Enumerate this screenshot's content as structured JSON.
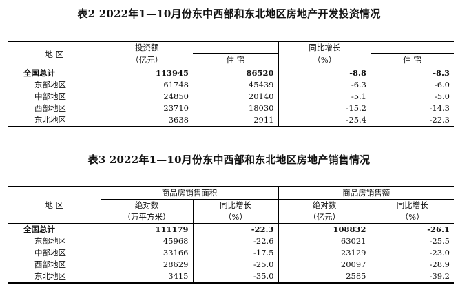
{
  "table2": {
    "title": "表2   2022年1—10月份东中西部和东北地区房地产开发投资情况",
    "header": {
      "region": "地  区",
      "investment": "投资额",
      "investment_unit": "（亿元）",
      "residential": "住    宅",
      "yoy": "同比增长",
      "yoy_unit": "（%）",
      "yoy_residential": "住    宅"
    },
    "rows": [
      {
        "region": "全国总计",
        "investment": "113945",
        "residential": "86520",
        "yoy": "-8.8",
        "yoy_residential": "-8.3"
      },
      {
        "region": "东部地区",
        "investment": "61748",
        "residential": "45439",
        "yoy": "-6.3",
        "yoy_residential": "-6.0"
      },
      {
        "region": "中部地区",
        "investment": "24850",
        "residential": "20140",
        "yoy": "-5.1",
        "yoy_residential": "-5.0"
      },
      {
        "region": "西部地区",
        "investment": "23710",
        "residential": "18030",
        "yoy": "-15.2",
        "yoy_residential": "-14.3"
      },
      {
        "region": "东北地区",
        "investment": "3638",
        "residential": "2911",
        "yoy": "-25.4",
        "yoy_residential": "-22.3"
      }
    ]
  },
  "table3": {
    "title": "表3   2022年1—10月份东中西部和东北地区房地产销售情况",
    "header": {
      "region": "地  区",
      "area_group": "商品房销售面积",
      "sales_group": "商品房销售额",
      "absolute": "绝对数",
      "area_unit": "（万平方米）",
      "yoy": "同比增长",
      "yoy_unit": "（%）",
      "sales_unit": "（亿元）"
    },
    "rows": [
      {
        "region": "全国总计",
        "area": "111179",
        "area_yoy": "-22.3",
        "sales": "108832",
        "sales_yoy": "-26.1"
      },
      {
        "region": "东部地区",
        "area": "45968",
        "area_yoy": "-22.6",
        "sales": "63021",
        "sales_yoy": "-25.5"
      },
      {
        "region": "中部地区",
        "area": "33166",
        "area_yoy": "-17.5",
        "sales": "23129",
        "sales_yoy": "-23.0"
      },
      {
        "region": "西部地区",
        "area": "28629",
        "area_yoy": "-25.0",
        "sales": "20097",
        "sales_yoy": "-28.9"
      },
      {
        "region": "东北地区",
        "area": "3415",
        "area_yoy": "-35.0",
        "sales": "2585",
        "sales_yoy": "-39.2"
      }
    ]
  }
}
